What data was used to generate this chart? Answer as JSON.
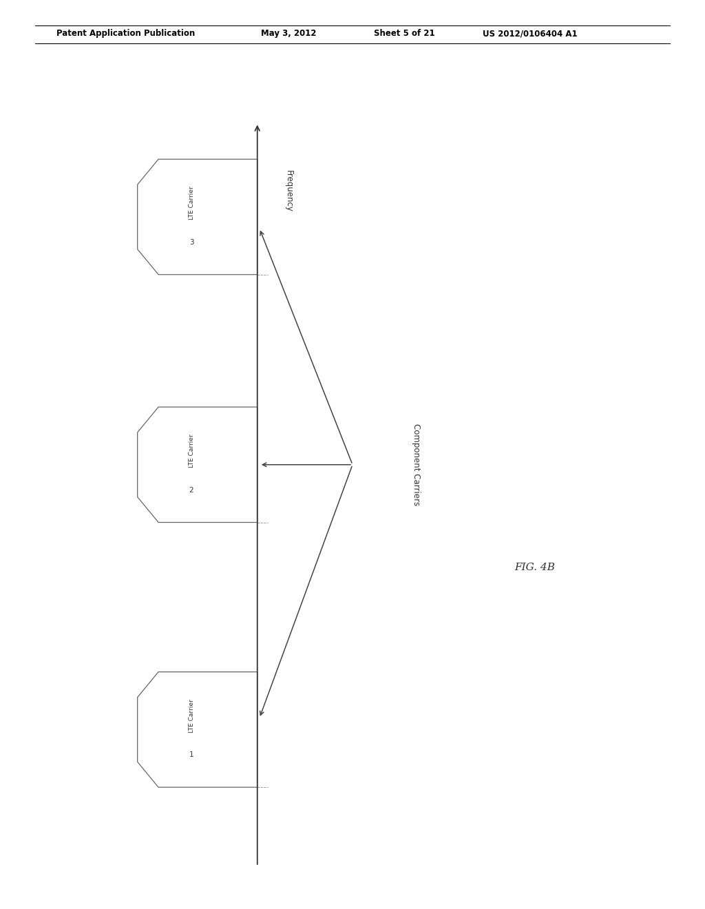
{
  "background_color": "#ffffff",
  "header_text": "Patent Application Publication",
  "header_date": "May 3, 2012",
  "header_sheet": "Sheet 5 of 21",
  "header_patent": "US 2012/0106404 A1",
  "fig_label": "FIG. 4B",
  "freq_label": "Frequency",
  "comp_carriers_label": "Component Carriers",
  "carriers": [
    {
      "label": "LTE Carrier",
      "number": "3"
    },
    {
      "label": "LTE Carrier",
      "number": "2"
    },
    {
      "label": "LTE Carrier",
      "number": "1"
    }
  ]
}
